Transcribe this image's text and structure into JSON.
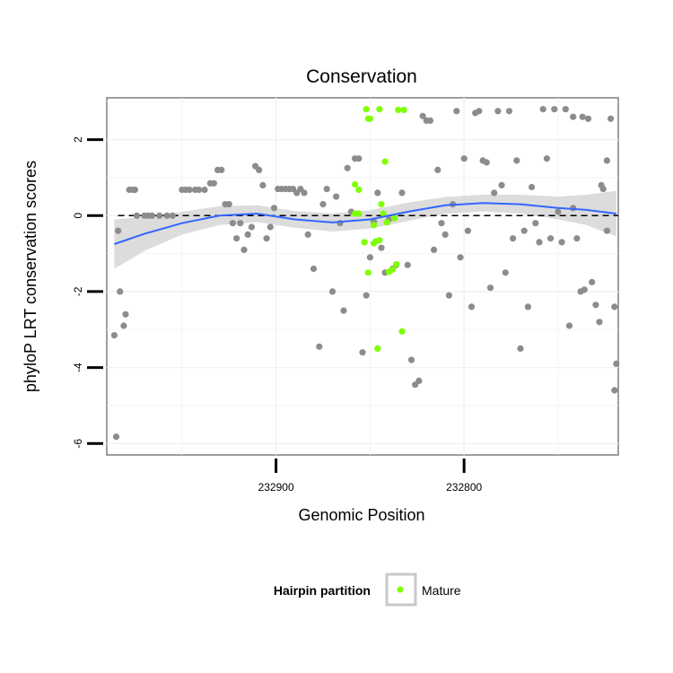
{
  "chart_data": {
    "type": "scatter",
    "title": "Conservation",
    "xlabel": "Genomic Position",
    "ylabel": "phyloP LRT conservation scores",
    "x_reversed": true,
    "xlim": [
      232990,
      232718
    ],
    "ylim": [
      -6.3,
      3.1
    ],
    "x_ticks": [
      232900,
      232800
    ],
    "y_ticks": [
      -6,
      -4,
      -2,
      0,
      2
    ],
    "reference_line": {
      "y": 0,
      "style": "dashed",
      "color": "#000000"
    },
    "grid": true,
    "legend": {
      "title": "Hairpin partition",
      "position": "bottom",
      "entries": [
        {
          "label": "Mature",
          "color": "#7fff00"
        }
      ]
    },
    "colors": {
      "other": "#8c8c8c",
      "mature": "#7fff00",
      "smooth_line": "#3366ff",
      "confidence_band": "#d3d3d3",
      "panel_border": "#7f7f7f"
    },
    "series": [
      {
        "name": "Mature",
        "points": [
          [
            232852,
            2.8
          ],
          [
            232851,
            2.55
          ],
          [
            232850,
            2.55
          ],
          [
            232845,
            2.8
          ],
          [
            232835,
            2.78
          ],
          [
            232832,
            2.78
          ],
          [
            232858,
            0.82
          ],
          [
            232856,
            0.68
          ],
          [
            232858,
            0.05
          ],
          [
            232856,
            0.05
          ],
          [
            232842,
            1.42
          ],
          [
            232844,
            0.3
          ],
          [
            232843,
            0.05
          ],
          [
            232841,
            -0.18
          ],
          [
            232837,
            -0.07
          ],
          [
            232848,
            -0.25
          ],
          [
            232848,
            -0.73
          ],
          [
            232845,
            -0.65
          ],
          [
            232847,
            -0.68
          ],
          [
            232853,
            -0.7
          ],
          [
            232851,
            -1.5
          ],
          [
            232836,
            -1.28
          ],
          [
            232838,
            -1.42
          ],
          [
            232840,
            -1.48
          ],
          [
            232833,
            -3.05
          ],
          [
            232846,
            -3.5
          ]
        ]
      },
      {
        "name": "",
        "points": [
          [
            232986,
            -3.15
          ],
          [
            232983,
            -2.0
          ],
          [
            232981,
            -2.9
          ],
          [
            232980,
            -2.6
          ],
          [
            232984,
            -0.4
          ],
          [
            232985,
            -5.82
          ],
          [
            232978,
            0.68
          ],
          [
            232976,
            0.68
          ],
          [
            232975,
            0.68
          ],
          [
            232974,
            0.0
          ],
          [
            232970,
            0.0
          ],
          [
            232968,
            0.0
          ],
          [
            232966,
            0.0
          ],
          [
            232962,
            0.0
          ],
          [
            232958,
            0.0
          ],
          [
            232955,
            0.0
          ],
          [
            232950,
            0.68
          ],
          [
            232948,
            0.68
          ],
          [
            232946,
            0.68
          ],
          [
            232943,
            0.68
          ],
          [
            232941,
            0.68
          ],
          [
            232938,
            0.68
          ],
          [
            232935,
            0.85
          ],
          [
            232933,
            0.85
          ],
          [
            232931,
            1.2
          ],
          [
            232929,
            1.2
          ],
          [
            232927,
            0.3
          ],
          [
            232925,
            0.3
          ],
          [
            232923,
            -0.2
          ],
          [
            232921,
            -0.6
          ],
          [
            232919,
            -0.2
          ],
          [
            232917,
            -0.9
          ],
          [
            232915,
            -0.5
          ],
          [
            232913,
            -0.3
          ],
          [
            232911,
            1.3
          ],
          [
            232909,
            1.2
          ],
          [
            232907,
            0.8
          ],
          [
            232905,
            -0.6
          ],
          [
            232903,
            -0.3
          ],
          [
            232901,
            0.2
          ],
          [
            232899,
            0.7
          ],
          [
            232897,
            0.7
          ],
          [
            232895,
            0.7
          ],
          [
            232893,
            0.7
          ],
          [
            232891,
            0.7
          ],
          [
            232889,
            0.6
          ],
          [
            232887,
            0.7
          ],
          [
            232885,
            0.6
          ],
          [
            232883,
            -0.5
          ],
          [
            232880,
            -1.4
          ],
          [
            232877,
            -3.45
          ],
          [
            232875,
            0.3
          ],
          [
            232873,
            0.7
          ],
          [
            232870,
            -2.0
          ],
          [
            232868,
            0.5
          ],
          [
            232866,
            -0.2
          ],
          [
            232864,
            -2.5
          ],
          [
            232862,
            1.25
          ],
          [
            232860,
            0.1
          ],
          [
            232858,
            1.5
          ],
          [
            232856,
            1.5
          ],
          [
            232854,
            -3.6
          ],
          [
            232852,
            -2.1
          ],
          [
            232850,
            -1.1
          ],
          [
            232848,
            -0.15
          ],
          [
            232846,
            0.6
          ],
          [
            232844,
            -0.85
          ],
          [
            232842,
            -1.5
          ],
          [
            232840,
            -0.1
          ],
          [
            232838,
            -1.4
          ],
          [
            232836,
            -1.3
          ],
          [
            232833,
            0.6
          ],
          [
            232830,
            -1.3
          ],
          [
            232828,
            -3.8
          ],
          [
            232826,
            -4.45
          ],
          [
            232824,
            -4.35
          ],
          [
            232822,
            2.62
          ],
          [
            232820,
            2.5
          ],
          [
            232818,
            2.5
          ],
          [
            232816,
            -0.9
          ],
          [
            232814,
            1.2
          ],
          [
            232812,
            -0.2
          ],
          [
            232810,
            -0.5
          ],
          [
            232808,
            -2.1
          ],
          [
            232806,
            0.3
          ],
          [
            232804,
            2.75
          ],
          [
            232802,
            -1.1
          ],
          [
            232800,
            1.5
          ],
          [
            232798,
            -0.4
          ],
          [
            232796,
            -2.4
          ],
          [
            232794,
            2.7
          ],
          [
            232792,
            2.75
          ],
          [
            232790,
            1.45
          ],
          [
            232788,
            1.4
          ],
          [
            232786,
            -1.9
          ],
          [
            232784,
            0.6
          ],
          [
            232782,
            2.75
          ],
          [
            232780,
            0.8
          ],
          [
            232778,
            -1.5
          ],
          [
            232776,
            2.75
          ],
          [
            232774,
            -0.6
          ],
          [
            232772,
            1.45
          ],
          [
            232770,
            -3.5
          ],
          [
            232768,
            -0.4
          ],
          [
            232766,
            -2.4
          ],
          [
            232764,
            0.75
          ],
          [
            232762,
            -0.2
          ],
          [
            232760,
            -0.7
          ],
          [
            232758,
            2.8
          ],
          [
            232756,
            1.5
          ],
          [
            232754,
            -0.6
          ],
          [
            232752,
            2.8
          ],
          [
            232750,
            0.1
          ],
          [
            232748,
            -0.7
          ],
          [
            232746,
            2.8
          ],
          [
            232744,
            -2.9
          ],
          [
            232742,
            0.2
          ],
          [
            232740,
            -0.6
          ],
          [
            232738,
            -2.0
          ],
          [
            232736,
            -1.95
          ],
          [
            232734,
            2.55
          ],
          [
            232732,
            -1.75
          ],
          [
            232730,
            -2.35
          ],
          [
            232728,
            -2.8
          ],
          [
            232726,
            0.7
          ],
          [
            232724,
            -0.4
          ],
          [
            232722,
            2.55
          ],
          [
            232720,
            -2.4
          ],
          [
            232719,
            -3.9
          ],
          [
            232720,
            -4.6
          ],
          [
            232724,
            1.45
          ],
          [
            232727,
            0.8
          ],
          [
            232737,
            2.6
          ],
          [
            232742,
            2.6
          ]
        ]
      }
    ],
    "smooth_fit": [
      [
        232986,
        -0.75
      ],
      [
        232970,
        -0.48
      ],
      [
        232950,
        -0.2
      ],
      [
        232930,
        0.0
      ],
      [
        232910,
        0.05
      ],
      [
        232890,
        -0.1
      ],
      [
        232870,
        -0.18
      ],
      [
        232850,
        -0.1
      ],
      [
        232830,
        0.1
      ],
      [
        232810,
        0.27
      ],
      [
        232790,
        0.33
      ],
      [
        232770,
        0.3
      ],
      [
        232750,
        0.2
      ],
      [
        232735,
        0.15
      ],
      [
        232719,
        0.05
      ]
    ],
    "smooth_band_halfwidth": [
      0.65,
      0.45,
      0.3,
      0.25,
      0.22,
      0.22,
      0.24,
      0.24,
      0.24,
      0.22,
      0.22,
      0.25,
      0.3,
      0.4,
      0.6
    ]
  }
}
